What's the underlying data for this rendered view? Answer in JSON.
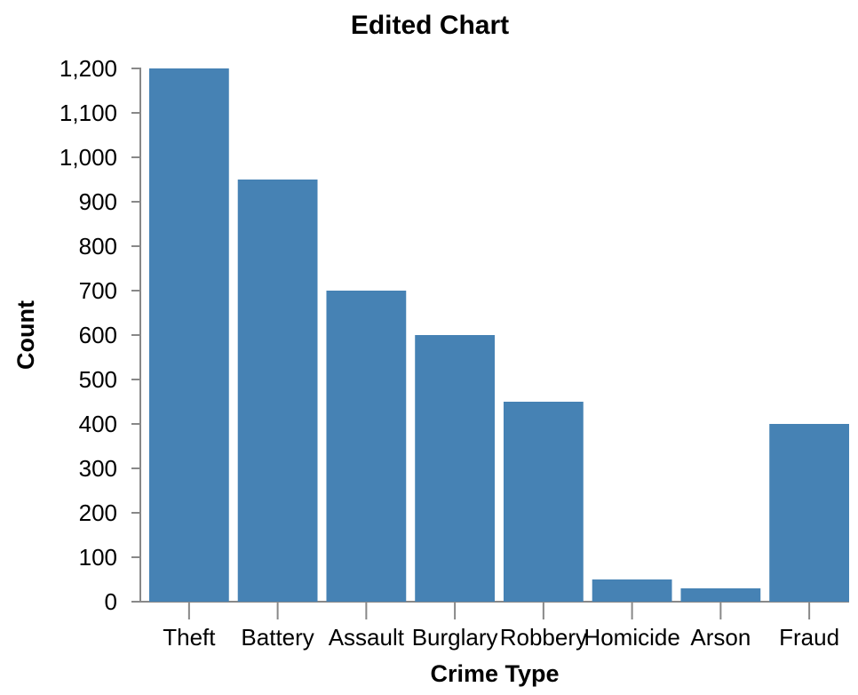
{
  "chart_data": {
    "type": "bar",
    "title": "Edited Chart",
    "xlabel": "Crime Type",
    "ylabel": "Count",
    "categories": [
      "Theft",
      "Battery",
      "Assault",
      "Burglary",
      "Robbery",
      "Homicide",
      "Arson",
      "Fraud"
    ],
    "values": [
      1200,
      950,
      700,
      600,
      450,
      50,
      30,
      400
    ],
    "ylim": [
      0,
      1200
    ],
    "yticks": [
      0,
      100,
      200,
      300,
      400,
      500,
      600,
      700,
      800,
      900,
      1000,
      1100,
      1200
    ],
    "ytick_labels": [
      "0",
      "100",
      "200",
      "300",
      "400",
      "500",
      "600",
      "700",
      "800",
      "900",
      "1,000",
      "1,100",
      "1,200"
    ],
    "bar_color": "#4682b4",
    "grid": false,
    "legend": "none"
  }
}
